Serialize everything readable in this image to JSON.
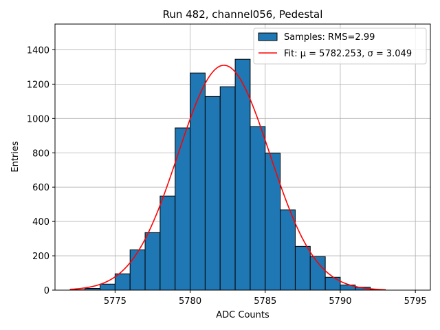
{
  "chart_data": {
    "type": "bar",
    "title": "Run 482, channel056, Pedestal",
    "xlabel": "ADC Counts",
    "ylabel": "Entries",
    "xlim": [
      5771,
      5796
    ],
    "ylim": [
      0,
      1550
    ],
    "xticks": [
      5775,
      5780,
      5785,
      5790,
      5795
    ],
    "yticks": [
      0,
      200,
      400,
      600,
      800,
      1000,
      1200,
      1400
    ],
    "grid": true,
    "bins": {
      "edges": [
        5772,
        5773,
        5774,
        5775,
        5776,
        5777,
        5778,
        5779,
        5780,
        5781,
        5782,
        5783,
        5784,
        5785,
        5786,
        5787,
        5788,
        5789,
        5790,
        5791,
        5792,
        5793
      ],
      "counts": [
        2,
        10,
        35,
        95,
        235,
        335,
        548,
        945,
        1265,
        1128,
        1185,
        1345,
        953,
        798,
        468,
        255,
        195,
        75,
        30,
        17,
        3
      ],
      "color": "#1f77b4",
      "edgecolor": "#000000"
    },
    "fit": {
      "mu": 5782.253,
      "sigma": 3.049,
      "amplitude": 1310,
      "x_range": [
        5772,
        5793
      ],
      "color": "#ff0000"
    },
    "legend": {
      "location": "top-right",
      "entries": [
        {
          "label": "Samples: RMS=2.99",
          "kind": "patch"
        },
        {
          "label": "Fit: μ = 5782.253, σ = 3.049",
          "kind": "line"
        }
      ]
    }
  }
}
